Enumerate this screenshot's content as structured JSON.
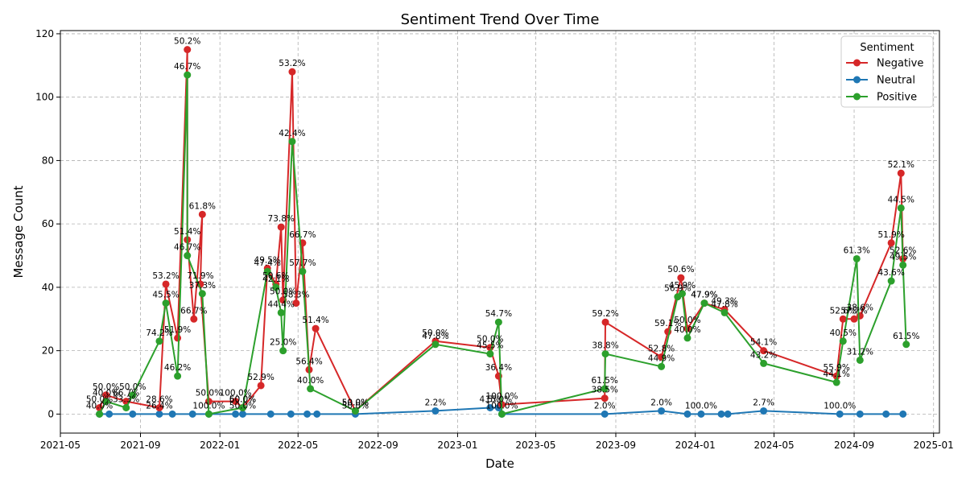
{
  "chart_data": {
    "type": "line",
    "title": "Sentiment Trend Over Time",
    "xlabel": "Date",
    "ylabel": "Message Count",
    "xlim": [
      "2021-05-01",
      "2025-01-10"
    ],
    "ylim": [
      -6,
      121
    ],
    "grid": true,
    "legend": {
      "title": "Sentiment",
      "placement": "top-right",
      "entries": [
        "Negative",
        "Neutral",
        "Positive"
      ]
    },
    "x_ticks": [
      "2021-05",
      "2021-09",
      "2022-01",
      "2022-05",
      "2022-09",
      "2023-01",
      "2023-05",
      "2023-09",
      "2024-01",
      "2024-05",
      "2024-09",
      "2025-01"
    ],
    "y_ticks": [
      0,
      20,
      40,
      60,
      80,
      100,
      120
    ],
    "colors": {
      "Negative": "#d62728",
      "Neutral": "#1f77b4",
      "Positive": "#2ca02c"
    },
    "series": [
      {
        "name": "Negative",
        "points": [
          [
            "2021-06-30",
            2,
            "50.0%"
          ],
          [
            "2021-07-10",
            6,
            "50.0%"
          ],
          [
            "2021-08-10",
            4,
            "66.7%"
          ],
          [
            "2021-09-30",
            2,
            "28.6%"
          ],
          [
            "2021-10-10",
            41,
            "53.2%"
          ],
          [
            "2021-10-28",
            24,
            "51.9%"
          ],
          [
            "2021-11-12",
            115,
            "50.2%"
          ],
          [
            "2021-11-12",
            55,
            "51.4%"
          ],
          [
            "2021-11-22",
            30,
            "66.7%"
          ],
          [
            "2021-12-05",
            63,
            "61.8%"
          ],
          [
            "2021-12-02",
            41,
            "71.9%"
          ],
          [
            "2021-12-15",
            4,
            "50.0%"
          ],
          [
            "2022-01-25",
            4,
            "100.0%"
          ],
          [
            "2022-02-05",
            2,
            "60.0%"
          ],
          [
            "2022-03-05",
            9,
            "52.9%"
          ],
          [
            "2022-03-15",
            46,
            "49.5%"
          ],
          [
            "2022-03-28",
            41,
            "50.6%"
          ],
          [
            "2022-04-05",
            59,
            "73.8%"
          ],
          [
            "2022-04-08",
            36,
            "50.0%"
          ],
          [
            "2022-04-22",
            108,
            "53.2%"
          ],
          [
            "2022-04-28",
            35,
            "58.3%"
          ],
          [
            "2022-05-08",
            54,
            "66.7%"
          ],
          [
            "2022-05-18",
            14,
            "56.4%"
          ],
          [
            "2022-05-28",
            27,
            "51.4%"
          ],
          [
            "2022-07-28",
            1,
            "50.0%"
          ],
          [
            "2022-11-28",
            23,
            "50.0%"
          ],
          [
            "2023-02-20",
            21,
            "50.0%"
          ],
          [
            "2023-03-05",
            12,
            "36.4%"
          ],
          [
            "2023-03-10",
            3,
            "100.0%"
          ],
          [
            "2023-08-15",
            5,
            "38.5%"
          ],
          [
            "2023-08-16",
            29,
            "59.2%"
          ],
          [
            "2023-11-10",
            18,
            "52.8%"
          ],
          [
            "2023-11-20",
            26,
            "59.1%"
          ],
          [
            "2023-12-10",
            43,
            "50.6%"
          ],
          [
            "2023-12-20",
            27,
            "50.0%"
          ],
          [
            "2024-01-15",
            35,
            "47.9%"
          ],
          [
            "2024-02-15",
            33,
            "49.3%"
          ],
          [
            "2024-04-15",
            20,
            "54.1%"
          ],
          [
            "2024-08-05",
            12,
            "55.9%"
          ],
          [
            "2024-08-15",
            30,
            "52.6%"
          ],
          [
            "2024-09-01",
            30,
            "57.7%"
          ],
          [
            "2024-09-10",
            31,
            "38.6%"
          ],
          [
            "2024-10-28",
            54,
            "51.9%"
          ],
          [
            "2024-11-12",
            76,
            "52.1%"
          ],
          [
            "2024-11-15",
            49,
            "52.6%"
          ]
        ]
      },
      {
        "name": "Neutral",
        "points": [
          [
            "2021-06-30",
            0,
            ""
          ],
          [
            "2021-07-15",
            0,
            ""
          ],
          [
            "2021-08-20",
            0,
            ""
          ],
          [
            "2021-09-30",
            0,
            "26.4%"
          ],
          [
            "2021-10-20",
            0,
            ""
          ],
          [
            "2021-11-20",
            0,
            ""
          ],
          [
            "2021-12-15",
            0,
            ""
          ],
          [
            "2022-01-25",
            0,
            ""
          ],
          [
            "2022-02-05",
            0,
            "50.0%"
          ],
          [
            "2022-03-20",
            0,
            ""
          ],
          [
            "2022-04-20",
            0,
            ""
          ],
          [
            "2022-05-15",
            0,
            ""
          ],
          [
            "2022-05-30",
            0,
            ""
          ],
          [
            "2022-07-28",
            0,
            "50.0%"
          ],
          [
            "2022-11-28",
            1,
            "2.2%"
          ],
          [
            "2023-02-20",
            2,
            "4.5%"
          ],
          [
            "2023-03-05",
            2,
            "15.0%"
          ],
          [
            "2023-03-10",
            0,
            ""
          ],
          [
            "2023-08-15",
            0,
            "2.0%"
          ],
          [
            "2023-11-10",
            1,
            "2.0%"
          ],
          [
            "2023-12-20",
            0,
            ""
          ],
          [
            "2024-01-10",
            0,
            "100.0%"
          ],
          [
            "2024-02-10",
            0,
            ""
          ],
          [
            "2024-02-20",
            0,
            ""
          ],
          [
            "2024-04-15",
            1,
            "2.7%"
          ],
          [
            "2024-08-10",
            0,
            "100.0%"
          ],
          [
            "2024-09-10",
            0,
            ""
          ],
          [
            "2024-10-20",
            0,
            ""
          ],
          [
            "2024-11-15",
            0,
            ""
          ]
        ]
      },
      {
        "name": "Positive",
        "points": [
          [
            "2021-06-30",
            0,
            "40.0%"
          ],
          [
            "2021-07-10",
            4,
            "40.0%"
          ],
          [
            "2021-08-10",
            2,
            "33.3%"
          ],
          [
            "2021-08-20",
            6,
            "50.0%"
          ],
          [
            "2021-09-30",
            23,
            "74.2%"
          ],
          [
            "2021-10-10",
            35,
            "45.5%"
          ],
          [
            "2021-10-28",
            12,
            "46.2%"
          ],
          [
            "2021-11-12",
            107,
            "46.7%"
          ],
          [
            "2021-11-12",
            50,
            "46.7%"
          ],
          [
            "2021-12-05",
            38,
            "37.3%"
          ],
          [
            "2021-12-15",
            0,
            "100.0%"
          ],
          [
            "2022-02-05",
            2,
            "50.0%"
          ],
          [
            "2022-03-15",
            45,
            "47.4%"
          ],
          [
            "2022-03-28",
            40,
            "42.1%"
          ],
          [
            "2022-04-05",
            32,
            "44.4%"
          ],
          [
            "2022-04-08",
            20,
            "25.0%"
          ],
          [
            "2022-04-22",
            86,
            "42.4%"
          ],
          [
            "2022-05-08",
            45,
            "57.7%"
          ],
          [
            "2022-05-20",
            8,
            "40.0%"
          ],
          [
            "2022-07-28",
            1,
            "50.0%"
          ],
          [
            "2022-11-28",
            22,
            "47.8%"
          ],
          [
            "2023-02-20",
            19,
            "45.5%"
          ],
          [
            "2023-03-05",
            29,
            "54.7%"
          ],
          [
            "2023-03-10",
            0,
            "100.0%"
          ],
          [
            "2023-08-15",
            8,
            "61.5%"
          ],
          [
            "2023-08-16",
            19,
            "38.8%"
          ],
          [
            "2023-11-10",
            15,
            "44.9%"
          ],
          [
            "2023-12-05",
            37,
            "56.9%"
          ],
          [
            "2023-12-12",
            38,
            "45.9%"
          ],
          [
            "2023-12-20",
            24,
            "40.0%"
          ],
          [
            "2024-01-15",
            35,
            "47.9%"
          ],
          [
            "2024-02-15",
            32,
            "47.8%"
          ],
          [
            "2024-04-15",
            16,
            "43.2%"
          ],
          [
            "2024-08-05",
            10,
            "44.1%"
          ],
          [
            "2024-08-15",
            23,
            "40.5%"
          ],
          [
            "2024-09-05",
            49,
            "61.3%"
          ],
          [
            "2024-09-10",
            17,
            "31.2%"
          ],
          [
            "2024-10-28",
            42,
            "43.6%"
          ],
          [
            "2024-11-12",
            65,
            "44.5%"
          ],
          [
            "2024-11-15",
            47,
            "49.5%"
          ],
          [
            "2024-11-20",
            22,
            "61.5%"
          ]
        ]
      }
    ]
  }
}
